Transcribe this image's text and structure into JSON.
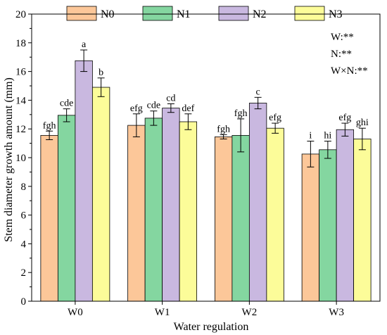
{
  "chart_data": {
    "type": "bar",
    "xlabel": "Water regulation",
    "ylabel": "Stem diameter growth amount (mm)",
    "categories": [
      "W0",
      "W1",
      "W2",
      "W3"
    ],
    "ylim": [
      0,
      20
    ],
    "yticks": [
      0,
      2,
      4,
      6,
      8,
      10,
      12,
      14,
      16,
      18,
      20
    ],
    "grid": false,
    "legend_position": "top",
    "series": [
      {
        "name": "N0",
        "color": "#FCC799",
        "values": [
          11.55,
          12.25,
          11.45,
          10.25
        ],
        "errors": [
          0.3,
          0.8,
          0.15,
          0.9
        ],
        "letters": [
          "fgh",
          "efg",
          "fgh",
          "i"
        ]
      },
      {
        "name": "N1",
        "color": "#84D6A0",
        "values": [
          12.95,
          12.75,
          11.55,
          10.55
        ],
        "errors": [
          0.45,
          0.5,
          1.15,
          0.6
        ],
        "letters": [
          "cde",
          "cde",
          "fgh",
          "hi"
        ]
      },
      {
        "name": "N2",
        "color": "#C9B8E0",
        "values": [
          16.75,
          13.45,
          13.8,
          11.95
        ],
        "errors": [
          0.75,
          0.3,
          0.4,
          0.45
        ],
        "letters": [
          "a",
          "cd",
          "c",
          "efg"
        ]
      },
      {
        "name": "N3",
        "color": "#FCFC99",
        "values": [
          14.9,
          12.5,
          12.05,
          11.3
        ],
        "errors": [
          0.65,
          0.55,
          0.35,
          0.75
        ],
        "letters": [
          "b",
          "def",
          "efg",
          "ghi"
        ]
      }
    ],
    "annotations": [
      "W:**",
      "N:**",
      "W×N:**"
    ]
  }
}
